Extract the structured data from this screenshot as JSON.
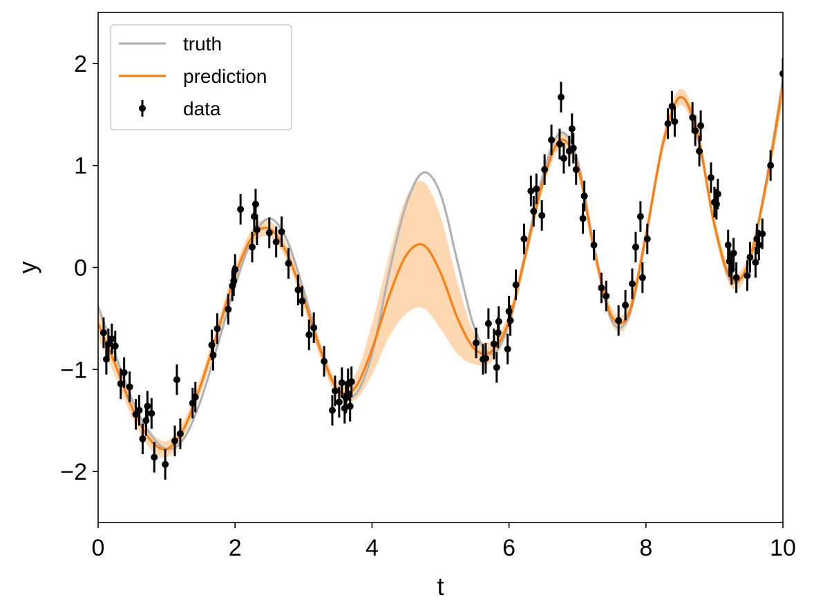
{
  "chart_data": {
    "type": "line",
    "xlabel": "t",
    "ylabel": "y",
    "xlim": [
      0,
      10
    ],
    "ylim": [
      -2.5,
      2.5
    ],
    "xticks": [
      0,
      2,
      4,
      6,
      8,
      10
    ],
    "xtick_labels": [
      "0",
      "2",
      "4",
      "6",
      "8",
      "10"
    ],
    "yticks": [
      -2,
      -1,
      0,
      1,
      2
    ],
    "ytick_labels": [
      "−2",
      "−1",
      "0",
      "1",
      "2"
    ],
    "grid": false,
    "legend_position": "top-left",
    "legend": [
      {
        "label": "truth",
        "kind": "line",
        "color": "#b2b2b2"
      },
      {
        "label": "prediction",
        "kind": "line",
        "color": "#ff7f0e"
      },
      {
        "label": "data",
        "kind": "errorbar",
        "color": "#000000"
      }
    ],
    "colors": {
      "truth": "#b2b2b2",
      "prediction": "#ff7f0e",
      "band": "#ffd6ad",
      "data": "#000000"
    },
    "series": [
      {
        "name": "truth",
        "x": [
          0,
          0.25,
          0.5,
          0.75,
          1,
          1.25,
          1.5,
          1.75,
          2,
          2.25,
          2.5,
          2.75,
          3,
          3.25,
          3.5,
          3.75,
          4,
          4.25,
          4.5,
          4.75,
          5,
          5.25,
          5.5,
          5.75,
          6,
          6.25,
          6.5,
          6.75,
          7,
          7.25,
          7.5,
          7.75,
          8,
          8.25,
          8.5,
          8.75,
          9,
          9.25,
          9.5,
          9.75,
          10
        ],
        "y": [
          -0.38,
          -0.85,
          -1.3,
          -1.62,
          -1.78,
          -1.68,
          -1.3,
          -0.75,
          -0.18,
          0.28,
          0.48,
          0.28,
          -0.22,
          -0.8,
          -1.2,
          -1.25,
          -0.85,
          -0.05,
          0.62,
          0.93,
          0.72,
          0.05,
          -0.6,
          -0.85,
          -0.55,
          0.18,
          0.92,
          1.32,
          1.05,
          0.18,
          -0.52,
          -0.48,
          0.3,
          1.22,
          1.67,
          1.3,
          0.42,
          -0.14,
          0.05,
          0.82,
          1.83
        ]
      },
      {
        "name": "prediction",
        "x": [
          0,
          0.25,
          0.5,
          0.75,
          1,
          1.25,
          1.5,
          1.75,
          2,
          2.25,
          2.5,
          2.75,
          3,
          3.25,
          3.5,
          3.75,
          4,
          4.25,
          4.5,
          4.75,
          5,
          5.25,
          5.5,
          5.75,
          6,
          6.25,
          6.5,
          6.75,
          7,
          7.25,
          7.5,
          7.75,
          8,
          8.25,
          8.5,
          8.75,
          9,
          9.25,
          9.5,
          9.75,
          10
        ],
        "y": [
          -0.55,
          -0.95,
          -1.38,
          -1.68,
          -1.78,
          -1.58,
          -1.15,
          -0.62,
          -0.08,
          0.3,
          0.38,
          0.15,
          -0.3,
          -0.82,
          -1.2,
          -1.18,
          -0.8,
          -0.28,
          0.12,
          0.22,
          -0.05,
          -0.5,
          -0.8,
          -0.82,
          -0.52,
          0.15,
          0.85,
          1.25,
          1.0,
          0.15,
          -0.48,
          -0.45,
          0.32,
          1.22,
          1.67,
          1.32,
          0.42,
          -0.12,
          0.05,
          0.8,
          1.78
        ],
        "lower": [
          -0.7,
          -1.07,
          -1.48,
          -1.77,
          -1.86,
          -1.66,
          -1.23,
          -0.7,
          -0.16,
          0.22,
          0.3,
          0.07,
          -0.38,
          -0.9,
          -1.28,
          -1.3,
          -1.05,
          -0.68,
          -0.45,
          -0.4,
          -0.6,
          -0.85,
          -0.95,
          -0.92,
          -0.6,
          0.07,
          0.77,
          1.17,
          0.92,
          0.07,
          -0.56,
          -0.53,
          0.24,
          1.14,
          1.59,
          1.24,
          0.34,
          -0.2,
          -0.03,
          0.72,
          1.63
        ],
        "upper": [
          -0.4,
          -0.83,
          -1.28,
          -1.59,
          -1.7,
          -1.5,
          -1.07,
          -0.54,
          0.0,
          0.38,
          0.46,
          0.23,
          -0.22,
          -0.74,
          -1.12,
          -1.06,
          -0.55,
          0.12,
          0.69,
          0.84,
          0.5,
          -0.15,
          -0.65,
          -0.72,
          -0.44,
          0.23,
          0.93,
          1.33,
          1.08,
          0.23,
          -0.4,
          -0.37,
          0.4,
          1.3,
          1.75,
          1.4,
          0.5,
          -0.04,
          0.13,
          0.88,
          1.93
        ]
      },
      {
        "name": "data",
        "points": [
          [
            0.08,
            -0.64
          ],
          [
            0.12,
            -0.9
          ],
          [
            0.15,
            -0.75
          ],
          [
            0.2,
            -0.7
          ],
          [
            0.25,
            -0.77
          ],
          [
            0.33,
            -1.14
          ],
          [
            0.38,
            -1.03
          ],
          [
            0.46,
            -1.17
          ],
          [
            0.55,
            -1.44
          ],
          [
            0.6,
            -1.4
          ],
          [
            0.65,
            -1.68
          ],
          [
            0.7,
            -1.5
          ],
          [
            0.72,
            -1.36
          ],
          [
            0.78,
            -1.43
          ],
          [
            0.82,
            -1.86
          ],
          [
            0.98,
            -1.93
          ],
          [
            1.12,
            -1.7
          ],
          [
            1.15,
            -1.1
          ],
          [
            1.2,
            -1.63
          ],
          [
            1.38,
            -1.33
          ],
          [
            1.42,
            -1.27
          ],
          [
            1.66,
            -0.76
          ],
          [
            1.68,
            -0.86
          ],
          [
            1.74,
            -0.6
          ],
          [
            1.9,
            -0.41
          ],
          [
            1.96,
            -0.18
          ],
          [
            1.98,
            -0.13
          ],
          [
            2.0,
            -0.02
          ],
          [
            2.08,
            0.57
          ],
          [
            2.25,
            0.2
          ],
          [
            2.28,
            0.5
          ],
          [
            2.3,
            0.62
          ],
          [
            2.32,
            0.37
          ],
          [
            2.5,
            0.34
          ],
          [
            2.6,
            0.25
          ],
          [
            2.68,
            0.35
          ],
          [
            2.78,
            0.04
          ],
          [
            2.92,
            -0.22
          ],
          [
            2.98,
            -0.33
          ],
          [
            3.08,
            -0.66
          ],
          [
            3.15,
            -0.59
          ],
          [
            3.3,
            -0.92
          ],
          [
            3.42,
            -1.4
          ],
          [
            3.46,
            -1.21
          ],
          [
            3.52,
            -1.32
          ],
          [
            3.56,
            -1.13
          ],
          [
            3.6,
            -1.38
          ],
          [
            3.62,
            -1.28
          ],
          [
            3.65,
            -1.14
          ],
          [
            3.68,
            -1.36
          ],
          [
            3.7,
            -1.12
          ],
          [
            5.52,
            -0.74
          ],
          [
            5.62,
            -0.9
          ],
          [
            5.66,
            -0.89
          ],
          [
            5.7,
            -0.55
          ],
          [
            5.78,
            -0.75
          ],
          [
            5.82,
            -0.98
          ],
          [
            5.84,
            -0.64
          ],
          [
            5.85,
            -0.53
          ],
          [
            5.98,
            -0.8
          ],
          [
            6.0,
            -0.43
          ],
          [
            6.02,
            -0.52
          ],
          [
            6.1,
            -0.17
          ],
          [
            6.22,
            0.28
          ],
          [
            6.32,
            0.75
          ],
          [
            6.36,
            0.55
          ],
          [
            6.4,
            0.77
          ],
          [
            6.48,
            0.51
          ],
          [
            6.52,
            0.96
          ],
          [
            6.62,
            1.25
          ],
          [
            6.74,
            1.21
          ],
          [
            6.76,
            1.67
          ],
          [
            6.8,
            1.07
          ],
          [
            6.88,
            1.14
          ],
          [
            6.92,
            1.36
          ],
          [
            6.94,
            1.17
          ],
          [
            6.98,
            0.96
          ],
          [
            7.08,
            0.48
          ],
          [
            7.1,
            0.7
          ],
          [
            7.24,
            0.22
          ],
          [
            7.35,
            -0.2
          ],
          [
            7.42,
            -0.28
          ],
          [
            7.6,
            -0.52
          ],
          [
            7.7,
            -0.37
          ],
          [
            7.8,
            -0.16
          ],
          [
            7.85,
            0.2
          ],
          [
            7.92,
            0.5
          ],
          [
            7.95,
            -0.1
          ],
          [
            8.02,
            0.28
          ],
          [
            8.32,
            1.41
          ],
          [
            8.38,
            1.58
          ],
          [
            8.42,
            1.43
          ],
          [
            8.68,
            1.47
          ],
          [
            8.72,
            1.34
          ],
          [
            8.78,
            1.14
          ],
          [
            8.8,
            1.39
          ],
          [
            8.95,
            0.88
          ],
          [
            9.0,
            0.64
          ],
          [
            9.03,
            0.62
          ],
          [
            9.05,
            0.72
          ],
          [
            9.2,
            0.22
          ],
          [
            9.22,
            0.06
          ],
          [
            9.25,
            -0.02
          ],
          [
            9.28,
            0.14
          ],
          [
            9.32,
            -0.1
          ],
          [
            9.48,
            -0.08
          ],
          [
            9.52,
            0.1
          ],
          [
            9.6,
            0.05
          ],
          [
            9.62,
            0.28
          ],
          [
            9.65,
            0.22
          ],
          [
            9.7,
            0.33
          ],
          [
            9.82,
            1.0
          ],
          [
            10.0,
            1.9
          ]
        ],
        "yerr": 0.15
      }
    ]
  }
}
